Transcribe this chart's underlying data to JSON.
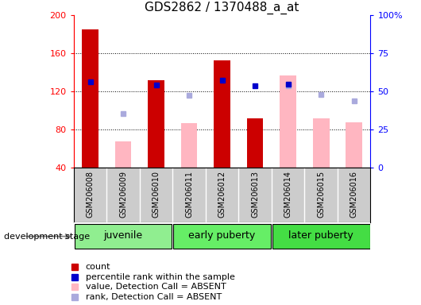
{
  "title": "GDS2862 / 1370488_a_at",
  "samples": [
    "GSM206008",
    "GSM206009",
    "GSM206010",
    "GSM206011",
    "GSM206012",
    "GSM206013",
    "GSM206014",
    "GSM206015",
    "GSM206016"
  ],
  "count_values": [
    185,
    null,
    132,
    null,
    153,
    92,
    null,
    null,
    null
  ],
  "count_absent_values": [
    null,
    68,
    null,
    87,
    null,
    null,
    137,
    92,
    88
  ],
  "rank_values": [
    130,
    null,
    127,
    null,
    132,
    126,
    128,
    null,
    null
  ],
  "rank_absent_values": [
    null,
    97,
    null,
    116,
    null,
    null,
    126,
    117,
    110
  ],
  "group_defs": [
    {
      "name": "juvenile",
      "start": 0,
      "end": 2,
      "color": "#90EE90"
    },
    {
      "name": "early puberty",
      "start": 3,
      "end": 5,
      "color": "#66EE66"
    },
    {
      "name": "later puberty",
      "start": 6,
      "end": 8,
      "color": "#44DD44"
    }
  ],
  "ylim": [
    40,
    200
  ],
  "yticks_left": [
    40,
    80,
    120,
    160,
    200
  ],
  "yticks_right_labels": [
    "0",
    "25",
    "50",
    "75",
    "100%"
  ],
  "yticks_right_values": [
    40,
    80,
    120,
    160,
    200
  ],
  "bar_color_present": "#CC0000",
  "bar_color_absent": "#FFB6C1",
  "dot_color_present": "#0000CC",
  "dot_color_absent": "#AAAADD",
  "title_fontsize": 11,
  "group_label_fontsize": 9,
  "legend_fontsize": 8,
  "sample_label_fontsize": 7,
  "bar_width": 0.5,
  "grid_yticks": [
    80,
    120,
    160
  ]
}
